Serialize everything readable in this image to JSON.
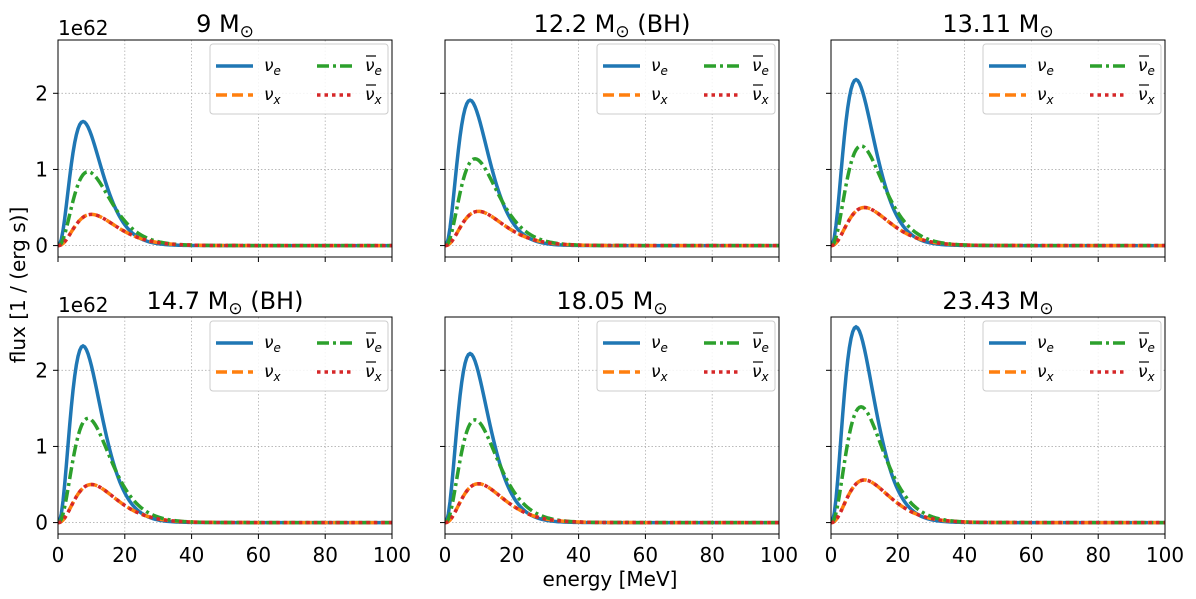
{
  "figure": {
    "ylabel": "flux [1 / (erg s)]",
    "xlabel": "energy [MeV]",
    "offset_text": "1e62"
  },
  "axes_common": {
    "xlim": [
      0,
      100
    ],
    "ylim": [
      -0.15,
      2.7
    ],
    "xticks": [
      0,
      20,
      40,
      60,
      80,
      100
    ],
    "yticks": [
      0,
      1,
      2
    ],
    "grid": true,
    "legend_placement": "top-right",
    "legend_columns": 2
  },
  "legend_entries": [
    {
      "key": "nu_e",
      "label_main": "ν",
      "label_sub": "e",
      "bar": false,
      "color": "#1f77b4",
      "dash": "solid"
    },
    {
      "key": "nu_x",
      "label_main": "ν",
      "label_sub": "x",
      "bar": false,
      "color": "#ff7f0e",
      "dash": "dashed"
    },
    {
      "key": "nubar_e",
      "label_main": "ν",
      "label_sub": "e",
      "bar": true,
      "color": "#2ca02c",
      "dash": "dashdot"
    },
    {
      "key": "nubar_x",
      "label_main": "ν",
      "label_sub": "x",
      "bar": true,
      "color": "#d62728",
      "dash": "dotted"
    }
  ],
  "chart_data": [
    {
      "type": "line",
      "title_main": "9 M",
      "title_symbol": "⊙",
      "title_suffix": "",
      "peaks": {
        "nu_e": [
          7.5,
          1.63
        ],
        "nu_x": [
          10,
          0.41
        ],
        "nubar_e": [
          9,
          0.97
        ],
        "nubar_x": [
          10,
          0.41
        ]
      }
    },
    {
      "type": "line",
      "title_main": "12.2 M",
      "title_symbol": "⊙",
      "title_suffix": " (BH)",
      "peaks": {
        "nu_e": [
          7.5,
          1.91
        ],
        "nu_x": [
          10,
          0.45
        ],
        "nubar_e": [
          9,
          1.14
        ],
        "nubar_x": [
          10,
          0.45
        ]
      }
    },
    {
      "type": "line",
      "title_main": "13.11 M",
      "title_symbol": "⊙",
      "title_suffix": "",
      "peaks": {
        "nu_e": [
          7.5,
          2.18
        ],
        "nu_x": [
          10,
          0.5
        ],
        "nubar_e": [
          9,
          1.31
        ],
        "nubar_x": [
          10,
          0.5
        ]
      }
    },
    {
      "type": "line",
      "title_main": "14.7 M",
      "title_symbol": "⊙",
      "title_suffix": " (BH)",
      "peaks": {
        "nu_e": [
          7.5,
          2.32
        ],
        "nu_x": [
          10,
          0.5
        ],
        "nubar_e": [
          9,
          1.37
        ],
        "nubar_x": [
          10,
          0.5
        ]
      }
    },
    {
      "type": "line",
      "title_main": "18.05 M",
      "title_symbol": "⊙",
      "title_suffix": "",
      "peaks": {
        "nu_e": [
          7.5,
          2.22
        ],
        "nu_x": [
          10,
          0.51
        ],
        "nubar_e": [
          9,
          1.35
        ],
        "nubar_x": [
          10,
          0.51
        ]
      }
    },
    {
      "type": "line",
      "title_main": "23.43 M",
      "title_symbol": "⊙",
      "title_suffix": "",
      "peaks": {
        "nu_e": [
          7.5,
          2.57
        ],
        "nu_x": [
          10,
          0.56
        ],
        "nubar_e": [
          9,
          1.52
        ],
        "nubar_x": [
          10,
          0.56
        ]
      }
    }
  ]
}
